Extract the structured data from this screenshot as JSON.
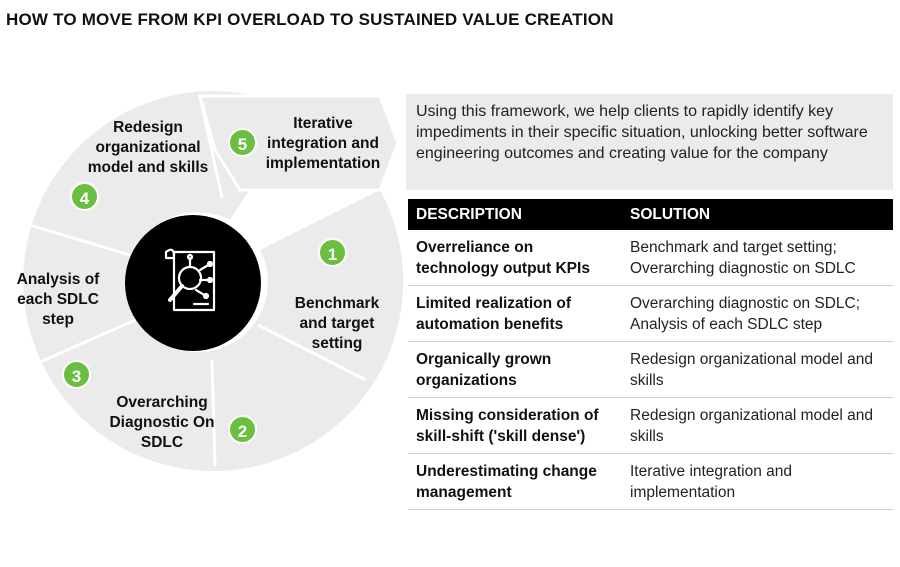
{
  "title": "HOW TO MOVE FROM KPI OVERLOAD TO SUSTAINED VALUE CREATION",
  "colors": {
    "accent_green": "#6abf40",
    "wheel_gray": "#ebebeb",
    "header_black": "#000000"
  },
  "center_icon": "document-analysis-magnifier-icon",
  "steps": [
    {
      "number": "1",
      "label": "Benchmark and target setting"
    },
    {
      "number": "2",
      "label": "Overarching Diagnostic On SDLC"
    },
    {
      "number": "3",
      "label": "Analysis of each SDLC step"
    },
    {
      "number": "4",
      "label": "Redesign organizational model and skills"
    },
    {
      "number": "5",
      "label": "Iterative integration and implementation"
    }
  ],
  "intro_text": "Using this framework, we help clients to rapidly identify key impediments in their specific situation, unlocking better software engineering outcomes and creating value for the company",
  "table": {
    "headers": {
      "description": "DESCRIPTION",
      "solution": "SOLUTION"
    },
    "rows": [
      {
        "description": "Overreliance on technology output KPIs",
        "solution": "Benchmark and target setting; Overarching diagnostic on SDLC"
      },
      {
        "description": "Limited realization of automation benefits",
        "solution": "Overarching diagnostic on SDLC; Analysis of each SDLC step"
      },
      {
        "description": "Organically grown organizations",
        "solution": "Redesign organizational model and skills"
      },
      {
        "description": "Missing consideration of skill-shift ('skill dense')",
        "solution": "Redesign organizational model and skills"
      },
      {
        "description": "Underestimating change management",
        "solution": "Iterative integration and implementation"
      }
    ]
  }
}
